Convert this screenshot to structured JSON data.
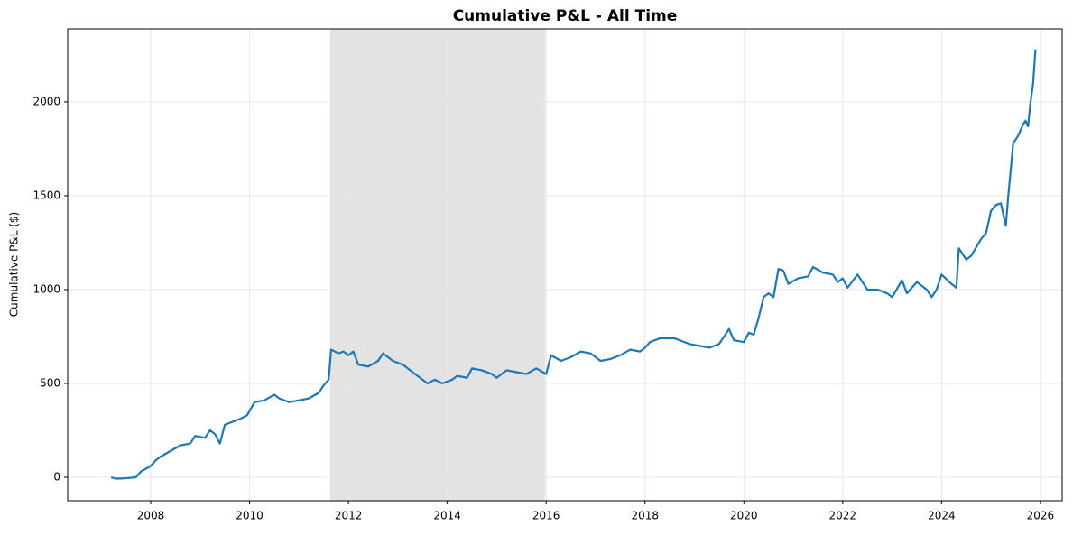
{
  "chart_data": {
    "type": "line",
    "title": "Cumulative P&L - All Time",
    "ylabel": "Cumulative P&L ($)",
    "x": [
      2007.2,
      2007.3,
      2007.5,
      2007.7,
      2007.8,
      2008.0,
      2008.1,
      2008.2,
      2008.4,
      2008.6,
      2008.8,
      2008.9,
      2009.1,
      2009.2,
      2009.3,
      2009.4,
      2009.5,
      2009.8,
      2009.95,
      2010.1,
      2010.3,
      2010.5,
      2010.6,
      2010.8,
      2011.0,
      2011.2,
      2011.4,
      2011.5,
      2011.6,
      2011.65,
      2011.8,
      2011.9,
      2012.0,
      2012.1,
      2012.2,
      2012.4,
      2012.6,
      2012.7,
      2012.9,
      2013.1,
      2013.3,
      2013.5,
      2013.6,
      2013.75,
      2013.9,
      2014.1,
      2014.2,
      2014.4,
      2014.5,
      2014.7,
      2014.9,
      2015.0,
      2015.2,
      2015.4,
      2015.6,
      2015.8,
      2016.0,
      2016.1,
      2016.3,
      2016.5,
      2016.7,
      2016.9,
      2017.1,
      2017.3,
      2017.5,
      2017.7,
      2017.9,
      2018.0,
      2018.1,
      2018.3,
      2018.6,
      2018.9,
      2019.1,
      2019.3,
      2019.5,
      2019.6,
      2019.7,
      2019.8,
      2020.0,
      2020.1,
      2020.2,
      2020.3,
      2020.4,
      2020.5,
      2020.6,
      2020.7,
      2020.8,
      2020.9,
      2021.1,
      2021.3,
      2021.4,
      2021.6,
      2021.8,
      2021.9,
      2022.0,
      2022.1,
      2022.3,
      2022.5,
      2022.7,
      2022.9,
      2023.0,
      2023.2,
      2023.3,
      2023.5,
      2023.7,
      2023.8,
      2023.9,
      2024.0,
      2024.2,
      2024.3,
      2024.35,
      2024.5,
      2024.6,
      2024.8,
      2024.9,
      2025.0,
      2025.1,
      2025.2,
      2025.3,
      2025.35,
      2025.45,
      2025.55,
      2025.65,
      2025.7,
      2025.75,
      2025.8,
      2025.85,
      2025.9
    ],
    "series": [
      {
        "name": "Cumulative P&L",
        "color": "#1f77b4",
        "values": [
          0,
          -8,
          -5,
          0,
          30,
          60,
          90,
          110,
          140,
          170,
          180,
          220,
          210,
          250,
          230,
          180,
          280,
          310,
          330,
          400,
          410,
          440,
          420,
          400,
          410,
          420,
          450,
          490,
          520,
          680,
          660,
          670,
          650,
          670,
          600,
          590,
          620,
          660,
          620,
          600,
          560,
          520,
          500,
          520,
          500,
          520,
          540,
          530,
          580,
          570,
          550,
          530,
          570,
          560,
          550,
          580,
          550,
          650,
          620,
          640,
          670,
          660,
          620,
          630,
          650,
          680,
          670,
          690,
          720,
          740,
          740,
          710,
          700,
          690,
          710,
          750,
          790,
          730,
          720,
          770,
          760,
          850,
          960,
          980,
          960,
          1110,
          1100,
          1030,
          1060,
          1070,
          1120,
          1090,
          1080,
          1040,
          1060,
          1010,
          1080,
          1000,
          1000,
          980,
          960,
          1050,
          980,
          1040,
          1000,
          960,
          1000,
          1080,
          1030,
          1010,
          1220,
          1160,
          1180,
          1270,
          1300,
          1420,
          1450,
          1460,
          1340,
          1500,
          1780,
          1820,
          1880,
          1900,
          1870,
          2000,
          2090,
          2280
        ]
      }
    ],
    "shaded_region": [
      2011.63,
      2015.98
    ],
    "xlim": [
      2006.32,
      2026.44
    ],
    "xticks": [
      2008,
      2010,
      2012,
      2014,
      2016,
      2018,
      2020,
      2022,
      2024,
      2026
    ],
    "ylim": [
      -125,
      2389
    ],
    "yticks": [
      0,
      500,
      1000,
      1500,
      2000
    ],
    "grid": true
  }
}
